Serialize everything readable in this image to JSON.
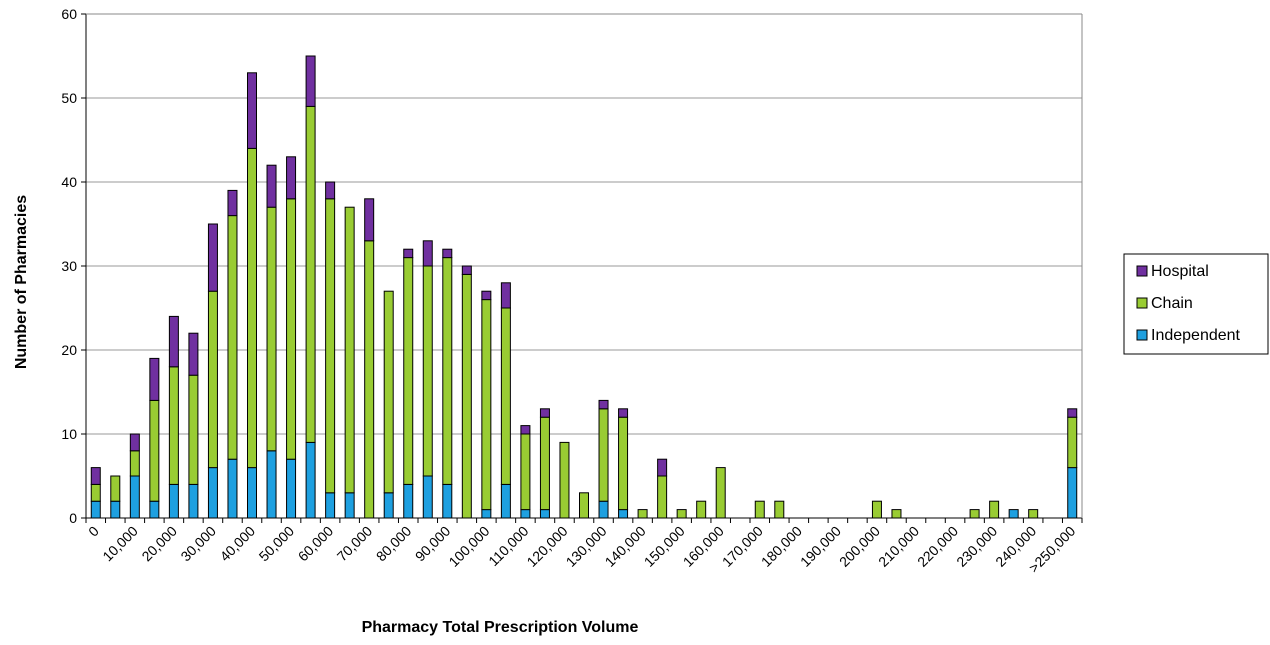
{
  "chart_data": {
    "type": "bar",
    "stacked": true,
    "title": "",
    "xlabel": "Pharmacy Total Prescription Volume",
    "ylabel": "Number of Pharmacies",
    "ylim": [
      0,
      60
    ],
    "yticks": [
      0,
      10,
      20,
      30,
      40,
      50,
      60
    ],
    "grid": true,
    "legend_position": "right",
    "x_tick_labels": [
      "0",
      "10,000",
      "20,000",
      "30,000",
      "40,000",
      "50,000",
      "60,000",
      "70,000",
      "80,000",
      "90,000",
      "100,000",
      "110,000",
      "120,000",
      "130,000",
      "140,000",
      "150,000",
      "160,000",
      "170,000",
      "180,000",
      "190,000",
      "200,000",
      "210,000",
      "220,000",
      "230,000",
      "240,000",
      ">250,000"
    ],
    "categories_count": 51,
    "series": [
      {
        "name": "Independent",
        "color": "#1EA0E0",
        "values": [
          2,
          2,
          5,
          2,
          4,
          4,
          6,
          7,
          6,
          8,
          7,
          9,
          3,
          3,
          0,
          3,
          4,
          5,
          4,
          0,
          1,
          4,
          1,
          1,
          0,
          0,
          2,
          1,
          0,
          0,
          0,
          0,
          0,
          0,
          0,
          0,
          0,
          0,
          0,
          0,
          0,
          0,
          0,
          0,
          0,
          0,
          0,
          1,
          0,
          0,
          6
        ]
      },
      {
        "name": "Chain",
        "color": "#99CC33",
        "values": [
          2,
          3,
          3,
          12,
          14,
          13,
          21,
          29,
          38,
          29,
          31,
          40,
          35,
          34,
          33,
          24,
          27,
          25,
          27,
          29,
          25,
          21,
          9,
          11,
          9,
          3,
          11,
          11,
          1,
          5,
          1,
          2,
          6,
          0,
          2,
          2,
          0,
          0,
          0,
          0,
          2,
          1,
          0,
          0,
          0,
          1,
          2,
          0,
          1,
          0,
          6
        ]
      },
      {
        "name": "Hospital",
        "color": "#7030A0",
        "values": [
          2,
          0,
          2,
          5,
          6,
          5,
          8,
          3,
          9,
          5,
          5,
          6,
          2,
          0,
          5,
          0,
          1,
          3,
          1,
          1,
          1,
          3,
          1,
          1,
          0,
          0,
          1,
          1,
          0,
          2,
          0,
          0,
          0,
          0,
          0,
          0,
          0,
          0,
          0,
          0,
          0,
          0,
          0,
          0,
          0,
          0,
          0,
          0,
          0,
          0,
          1
        ]
      }
    ]
  }
}
